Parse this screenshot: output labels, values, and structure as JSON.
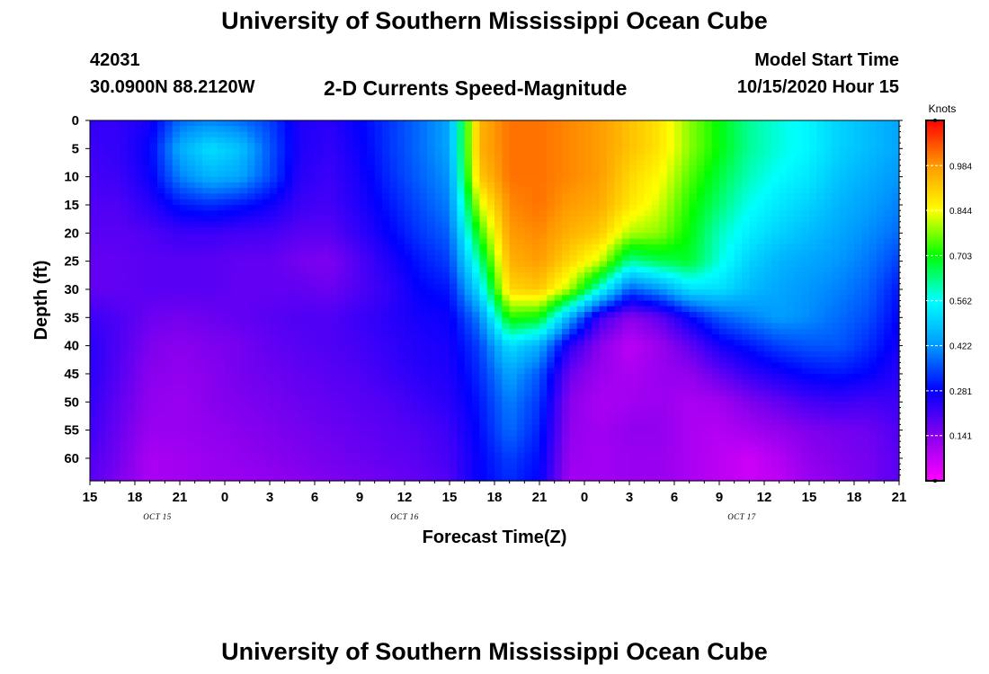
{
  "page": {
    "title_top": "University of Southern Mississippi Ocean Cube",
    "title_bottom": "University of Southern Mississippi Ocean Cube",
    "station_id": "42031",
    "station_coords": "30.0900N 88.2120W",
    "subtitle": "2-D Currents Speed-Magnitude",
    "model_label": "Model Start Time",
    "model_time": "10/15/2020 Hour 15"
  },
  "colors": {
    "scale": [
      "#ff00ff",
      "#8800ee",
      "#0000ff",
      "#0099ff",
      "#00ffff",
      "#00ff00",
      "#ffff00",
      "#ff9900",
      "#ff0000"
    ]
  },
  "chart_data": {
    "type": "heatmap",
    "title": "2-D Currents Speed-Magnitude",
    "xlabel": "Forecast Time(Z)",
    "ylabel": "Depth (ft)",
    "x_ticks": [
      "15",
      "18",
      "21",
      "0",
      "3",
      "6",
      "9",
      "12",
      "15",
      "18",
      "21",
      "0",
      "3",
      "6",
      "9",
      "12",
      "15",
      "18",
      "21"
    ],
    "day_labels": [
      {
        "label": "OCT 15",
        "at_hours": 4.5
      },
      {
        "label": "OCT 16",
        "at_hours": 21
      },
      {
        "label": "OCT 17",
        "at_hours": 43.5
      }
    ],
    "x_range_hours": [
      0,
      54
    ],
    "y_ticks": [
      0,
      5,
      10,
      15,
      20,
      25,
      30,
      35,
      40,
      45,
      50,
      55,
      60
    ],
    "y_range_ft": [
      0,
      64
    ],
    "colorbar": {
      "unit": "Knots",
      "min": 0.0,
      "max": 1.125,
      "tick_values": [
        0.141,
        0.281,
        0.422,
        0.562,
        0.703,
        0.844,
        0.984
      ]
    },
    "hour_cols": [
      0,
      2,
      4,
      6,
      8,
      10,
      12,
      14,
      16,
      18,
      20,
      22,
      24,
      26,
      28,
      30,
      32,
      34,
      36,
      38,
      40,
      42,
      44,
      46,
      48,
      50,
      52,
      54
    ],
    "depth_rows": [
      0,
      5,
      10,
      15,
      20,
      25,
      30,
      35,
      40,
      45,
      50,
      55,
      60,
      64
    ],
    "speeds": [
      [
        0.23,
        0.23,
        0.26,
        0.38,
        0.4,
        0.38,
        0.34,
        0.25,
        0.24,
        0.28,
        0.33,
        0.38,
        0.44,
        0.95,
        1.02,
        1.02,
        1.0,
        0.98,
        0.93,
        0.88,
        0.78,
        0.7,
        0.62,
        0.58,
        0.55,
        0.5,
        0.47,
        0.44
      ],
      [
        0.22,
        0.23,
        0.28,
        0.45,
        0.52,
        0.48,
        0.36,
        0.25,
        0.23,
        0.27,
        0.33,
        0.38,
        0.44,
        0.95,
        1.02,
        1.02,
        1.0,
        0.98,
        0.93,
        0.88,
        0.78,
        0.7,
        0.62,
        0.58,
        0.55,
        0.5,
        0.47,
        0.44
      ],
      [
        0.21,
        0.22,
        0.27,
        0.4,
        0.46,
        0.44,
        0.35,
        0.24,
        0.22,
        0.26,
        0.32,
        0.37,
        0.42,
        0.92,
        1.02,
        1.02,
        1.0,
        0.98,
        0.9,
        0.85,
        0.75,
        0.67,
        0.6,
        0.56,
        0.53,
        0.48,
        0.45,
        0.42
      ],
      [
        0.2,
        0.2,
        0.24,
        0.3,
        0.32,
        0.3,
        0.27,
        0.22,
        0.21,
        0.25,
        0.3,
        0.35,
        0.4,
        0.82,
        1.0,
        1.02,
        0.98,
        0.96,
        0.88,
        0.82,
        0.72,
        0.64,
        0.57,
        0.53,
        0.5,
        0.46,
        0.43,
        0.4
      ],
      [
        0.19,
        0.19,
        0.2,
        0.22,
        0.22,
        0.21,
        0.21,
        0.19,
        0.19,
        0.23,
        0.28,
        0.33,
        0.37,
        0.72,
        0.98,
        1.0,
        0.95,
        0.92,
        0.8,
        0.78,
        0.7,
        0.6,
        0.54,
        0.5,
        0.47,
        0.44,
        0.41,
        0.38
      ],
      [
        0.18,
        0.18,
        0.19,
        0.19,
        0.19,
        0.18,
        0.18,
        0.16,
        0.15,
        0.2,
        0.25,
        0.3,
        0.34,
        0.62,
        0.95,
        0.98,
        0.9,
        0.82,
        0.62,
        0.66,
        0.68,
        0.58,
        0.5,
        0.46,
        0.44,
        0.42,
        0.39,
        0.34
      ],
      [
        0.18,
        0.18,
        0.19,
        0.19,
        0.19,
        0.18,
        0.18,
        0.18,
        0.17,
        0.2,
        0.23,
        0.28,
        0.3,
        0.52,
        0.9,
        0.92,
        0.8,
        0.58,
        0.36,
        0.42,
        0.52,
        0.52,
        0.47,
        0.44,
        0.42,
        0.4,
        0.37,
        0.3
      ],
      [
        0.22,
        0.2,
        0.17,
        0.16,
        0.17,
        0.18,
        0.19,
        0.2,
        0.2,
        0.22,
        0.24,
        0.26,
        0.27,
        0.4,
        0.72,
        0.7,
        0.45,
        0.22,
        0.14,
        0.18,
        0.28,
        0.36,
        0.4,
        0.43,
        0.41,
        0.38,
        0.35,
        0.28
      ],
      [
        0.24,
        0.2,
        0.15,
        0.14,
        0.15,
        0.16,
        0.18,
        0.19,
        0.2,
        0.21,
        0.23,
        0.25,
        0.26,
        0.34,
        0.52,
        0.45,
        0.24,
        0.14,
        0.08,
        0.12,
        0.18,
        0.26,
        0.3,
        0.34,
        0.36,
        0.36,
        0.32,
        0.26
      ],
      [
        0.24,
        0.19,
        0.14,
        0.13,
        0.14,
        0.16,
        0.17,
        0.18,
        0.19,
        0.2,
        0.22,
        0.24,
        0.25,
        0.32,
        0.44,
        0.36,
        0.17,
        0.12,
        0.1,
        0.12,
        0.13,
        0.18,
        0.23,
        0.26,
        0.29,
        0.3,
        0.28,
        0.24
      ],
      [
        0.23,
        0.18,
        0.13,
        0.12,
        0.14,
        0.15,
        0.16,
        0.17,
        0.18,
        0.19,
        0.2,
        0.22,
        0.24,
        0.3,
        0.4,
        0.33,
        0.14,
        0.1,
        0.11,
        0.12,
        0.1,
        0.11,
        0.15,
        0.18,
        0.21,
        0.22,
        0.21,
        0.22
      ],
      [
        0.22,
        0.17,
        0.12,
        0.12,
        0.13,
        0.14,
        0.15,
        0.16,
        0.17,
        0.18,
        0.19,
        0.2,
        0.22,
        0.29,
        0.38,
        0.31,
        0.13,
        0.11,
        0.13,
        0.13,
        0.1,
        0.09,
        0.11,
        0.13,
        0.15,
        0.16,
        0.17,
        0.2
      ],
      [
        0.2,
        0.16,
        0.1,
        0.11,
        0.12,
        0.13,
        0.14,
        0.15,
        0.16,
        0.17,
        0.18,
        0.19,
        0.21,
        0.28,
        0.34,
        0.29,
        0.12,
        0.11,
        0.12,
        0.12,
        0.1,
        0.08,
        0.06,
        0.09,
        0.13,
        0.15,
        0.16,
        0.19
      ],
      [
        0.19,
        0.15,
        0.1,
        0.11,
        0.12,
        0.12,
        0.13,
        0.14,
        0.15,
        0.16,
        0.17,
        0.18,
        0.2,
        0.28,
        0.32,
        0.28,
        0.11,
        0.11,
        0.12,
        0.12,
        0.1,
        0.08,
        0.06,
        0.08,
        0.12,
        0.14,
        0.16,
        0.19
      ]
    ]
  }
}
